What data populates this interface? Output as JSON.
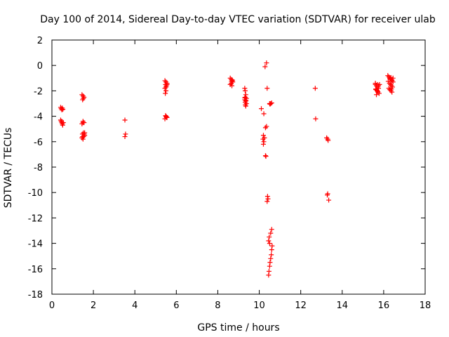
{
  "chart_data": {
    "type": "scatter",
    "title": "Day 100 of 2014, Sidereal Day-to-day VTEC variation (SDTVAR) for receiver ulab",
    "xlabel": "GPS time / hours",
    "ylabel": "SDTVAR / TECUs",
    "xlim": [
      0,
      18
    ],
    "ylim": [
      -18,
      2
    ],
    "xticks": [
      0,
      2,
      4,
      6,
      8,
      10,
      12,
      14,
      16,
      18
    ],
    "yticks": [
      2,
      0,
      -2,
      -4,
      -6,
      -8,
      -10,
      -12,
      -14,
      -16,
      -18
    ],
    "marker": "+",
    "color": "#ff0000",
    "grid": false,
    "series": [
      {
        "name": "SDTVAR",
        "x": [
          0.42,
          0.45,
          0.48,
          0.5,
          0.53,
          0.42,
          0.45,
          0.48,
          0.5,
          0.52,
          0.55,
          0.47,
          1.45,
          1.5,
          1.55,
          1.52,
          1.48,
          1.5,
          1.55,
          1.45,
          1.5,
          1.52,
          1.55,
          1.58,
          1.48,
          1.45,
          1.5,
          1.55,
          1.47,
          1.58,
          1.53,
          3.52,
          3.55,
          3.52,
          5.45,
          5.5,
          5.55,
          5.48,
          5.52,
          5.5,
          5.45,
          5.55,
          5.5,
          5.47,
          5.5,
          5.53,
          5.48,
          5.52,
          5.55,
          5.45,
          8.6,
          8.65,
          8.7,
          8.72,
          8.65,
          8.6,
          8.68,
          8.7,
          8.66,
          9.3,
          9.32,
          9.35,
          9.33,
          9.38,
          9.3,
          9.35,
          9.32,
          9.38,
          9.33,
          9.35,
          9.3,
          9.36,
          10.1,
          10.2,
          10.25,
          10.22,
          10.2,
          10.18,
          10.22,
          10.3,
          10.35,
          10.38,
          10.3,
          10.32,
          10.35,
          10.28,
          10.5,
          10.55,
          10.6,
          10.52,
          10.4,
          10.42,
          10.38,
          10.45,
          10.47,
          10.5,
          10.52,
          10.55,
          10.58,
          10.6,
          10.62,
          10.5,
          10.45,
          10.48,
          10.55,
          10.6,
          12.7,
          12.72,
          13.25,
          13.3,
          13.32,
          13.28,
          13.3,
          13.35,
          15.6,
          15.65,
          15.7,
          15.75,
          15.62,
          15.68,
          15.72,
          15.78,
          15.6,
          15.7,
          15.65,
          15.75,
          15.8,
          15.62,
          15.68,
          15.72,
          16.2,
          16.25,
          16.3,
          16.35,
          16.4,
          16.45,
          16.28,
          16.33,
          16.38,
          16.42,
          16.25,
          16.3,
          16.35,
          16.4,
          16.45,
          16.3,
          16.35,
          16.4,
          16.22,
          16.38
        ],
        "y": [
          -3.3,
          -3.4,
          -3.5,
          -3.35,
          -3.45,
          -4.3,
          -4.4,
          -4.5,
          -4.6,
          -4.7,
          -4.5,
          -4.4,
          -2.3,
          -2.4,
          -2.5,
          -2.6,
          -2.7,
          -4.4,
          -4.5,
          -4.6,
          -4.5,
          -5.3,
          -5.4,
          -5.5,
          -5.6,
          -5.7,
          -5.8,
          -5.5,
          -5.4,
          -5.3,
          -5.6,
          -4.3,
          -5.4,
          -5.6,
          -1.2,
          -1.3,
          -1.4,
          -1.5,
          -1.6,
          -1.7,
          -1.8,
          -1.5,
          -2.0,
          -2.2,
          -4.0,
          -4.1,
          -3.95,
          -4.05,
          -4.1,
          -4.2,
          -1.0,
          -1.1,
          -1.2,
          -1.3,
          -1.4,
          -1.5,
          -1.6,
          -1.15,
          -1.25,
          -1.8,
          -2.0,
          -2.3,
          -2.5,
          -2.6,
          -2.7,
          -2.8,
          -2.9,
          -3.0,
          -3.1,
          -3.2,
          -2.55,
          -2.75,
          -3.4,
          -5.5,
          -5.7,
          -6.0,
          -6.2,
          -5.8,
          -3.8,
          -4.9,
          -4.8,
          -1.8,
          -7.1,
          -7.15,
          0.2,
          -0.1,
          -3.0,
          -3.0,
          -2.95,
          -3.05,
          -10.3,
          -10.5,
          -10.7,
          -16.5,
          -16.2,
          -15.8,
          -15.5,
          -15.2,
          -14.9,
          -14.5,
          -14.2,
          -14.0,
          -13.8,
          -13.5,
          -13.2,
          -12.9,
          -1.8,
          -4.2,
          -5.7,
          -5.8,
          -5.9,
          -10.2,
          -10.1,
          -10.6,
          -1.5,
          -1.6,
          -1.7,
          -1.8,
          -1.9,
          -2.0,
          -2.1,
          -2.2,
          -1.4,
          -1.5,
          -2.3,
          -1.6,
          -1.5,
          -1.85,
          -1.95,
          -2.05,
          -0.8,
          -0.9,
          -1.0,
          -1.1,
          -1.2,
          -1.3,
          -1.4,
          -1.5,
          -1.6,
          -1.7,
          -1.8,
          -1.9,
          -2.0,
          -2.1,
          -1.0,
          -1.05,
          -0.95,
          -1.15,
          -1.25,
          -1.85
        ]
      }
    ]
  }
}
